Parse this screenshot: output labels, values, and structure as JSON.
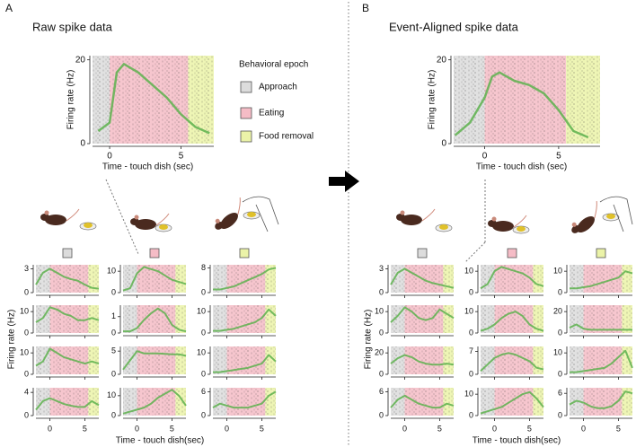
{
  "panels": [
    {
      "letter": "A",
      "title": "Raw spike data",
      "y_label": "Firing rate (Hz)",
      "x_label": "Time - touch dish(sec)"
    },
    {
      "letter": "B",
      "title": "Event-Aligned spike data",
      "y_label": "Firing rate (Hz)",
      "x_label": "Time - touch dish(sec)"
    }
  ],
  "legend": {
    "title": "Behavioral epoch"
  },
  "epochs": [
    {
      "name": "Approach",
      "color": "#dcdcdc",
      "start": -2.5,
      "end": 0
    },
    {
      "name": "Eating",
      "color": "#f5bcc6",
      "start": 0,
      "end": 5.5
    },
    {
      "name": "Food removal",
      "color": "#ebf3a8",
      "start": 5.5,
      "end": 8
    }
  ],
  "chart_data": [
    {
      "type": "line",
      "x_label": "Time - touch dish (sec)",
      "y_label": "Firing rate (Hz)",
      "x": [
        -0.8,
        0,
        0.5,
        1,
        2,
        3,
        4,
        5,
        6,
        7
      ],
      "values": [
        3,
        5,
        17,
        19,
        17,
        14,
        11,
        7,
        4,
        2.5
      ],
      "xlim": [
        -1.2,
        7.3
      ],
      "xticks": [
        0,
        5
      ],
      "ylim": [
        0,
        21
      ],
      "yticks": [
        0,
        20
      ],
      "color": "#5db14e"
    },
    {
      "type": "line",
      "x_label": "Time - touch dish (sec)",
      "y_label": "Firing rate (Hz)",
      "x": [
        -2,
        -1,
        0,
        0.5,
        1,
        2,
        3,
        4,
        5,
        6,
        7
      ],
      "values": [
        2,
        5,
        11,
        16,
        17,
        15,
        14,
        12,
        8,
        3,
        1.5
      ],
      "xlim": [
        -2.1,
        7.8
      ],
      "xticks": [
        0,
        5
      ],
      "ylim": [
        0,
        21
      ],
      "yticks": [
        0,
        20
      ],
      "color": "#5db14e"
    },
    {
      "type": "line",
      "x": [
        -2,
        -1,
        0,
        1,
        2,
        3,
        4,
        5,
        6,
        7
      ],
      "values": [
        1,
        2.5,
        3,
        2.5,
        2,
        1.7,
        1.5,
        1,
        0.6,
        0.5
      ],
      "xlim": [
        -2,
        7
      ],
      "xticks": [
        0,
        5
      ],
      "ylim": [
        0,
        3.5
      ],
      "yticks": [
        0,
        3
      ],
      "color": "#5db14e"
    },
    {
      "type": "line",
      "x": [
        -2,
        -1,
        0,
        1,
        2,
        3,
        4,
        5,
        6,
        7
      ],
      "values": [
        1,
        2,
        9,
        12,
        11,
        10,
        8,
        6,
        5,
        4
      ],
      "xlim": [
        -2,
        7
      ],
      "xticks": [
        0,
        5
      ],
      "ylim": [
        0,
        13
      ],
      "yticks": [
        0,
        10
      ],
      "color": "#5db14e"
    },
    {
      "type": "line",
      "x": [
        -2,
        -1,
        0,
        1,
        2,
        3,
        4,
        5,
        6,
        7
      ],
      "values": [
        1,
        1,
        1.5,
        2,
        3,
        4,
        5,
        6,
        7.5,
        8
      ],
      "xlim": [
        -2,
        7
      ],
      "xticks": [
        0,
        5
      ],
      "ylim": [
        0,
        9
      ],
      "yticks": [
        0,
        8
      ],
      "color": "#5db14e"
    },
    {
      "type": "line",
      "x": [
        -2,
        -1,
        0,
        1,
        2,
        3,
        4,
        5,
        6,
        7
      ],
      "values": [
        5,
        7,
        12,
        11,
        9,
        8,
        6,
        6,
        7,
        6
      ],
      "xlim": [
        -2,
        7
      ],
      "xticks": [
        0,
        5
      ],
      "ylim": [
        0,
        13
      ],
      "yticks": [
        0,
        10
      ],
      "color": "#5db14e"
    },
    {
      "type": "line",
      "x": [
        -2,
        -1,
        0,
        1,
        2,
        3,
        4,
        5,
        6,
        7
      ],
      "values": [
        0.1,
        0.1,
        0.3,
        0.8,
        1.2,
        1.5,
        1.2,
        0.5,
        0.2,
        0.1
      ],
      "xlim": [
        -2,
        7
      ],
      "xticks": [
        0,
        5
      ],
      "ylim": [
        0,
        1.7
      ],
      "yticks": [
        0,
        1
      ],
      "color": "#5db14e"
    },
    {
      "type": "line",
      "x": [
        -2,
        -1,
        0,
        1,
        2,
        3,
        4,
        5,
        6,
        7
      ],
      "values": [
        1,
        1,
        1.5,
        2,
        3,
        4,
        5,
        7,
        11,
        8
      ],
      "xlim": [
        -2,
        7
      ],
      "xticks": [
        0,
        5
      ],
      "ylim": [
        0,
        13
      ],
      "yticks": [
        0,
        10
      ],
      "color": "#5db14e"
    },
    {
      "type": "line",
      "x": [
        -2,
        -1,
        0,
        1,
        2,
        3,
        4,
        5,
        6,
        7
      ],
      "values": [
        4,
        6,
        12,
        10,
        8,
        7,
        6,
        5,
        6,
        5
      ],
      "xlim": [
        -2,
        7
      ],
      "xticks": [
        0,
        5
      ],
      "ylim": [
        0,
        13
      ],
      "yticks": [
        0,
        10
      ],
      "color": "#5db14e"
    },
    {
      "type": "line",
      "x": [
        -2,
        -1,
        0,
        1,
        2,
        3,
        4,
        5,
        6,
        7
      ],
      "values": [
        1,
        3,
        5,
        4.5,
        4.5,
        4.5,
        4.4,
        4.3,
        4.3,
        4
      ],
      "xlim": [
        -2,
        7
      ],
      "xticks": [
        0,
        5
      ],
      "ylim": [
        0,
        6
      ],
      "yticks": [
        0,
        5
      ],
      "color": "#5db14e"
    },
    {
      "type": "line",
      "x": [
        -2,
        -1,
        0,
        1,
        2,
        3,
        4,
        5,
        6,
        7
      ],
      "values": [
        1,
        1,
        1.5,
        2,
        2.5,
        3,
        4,
        5,
        9,
        6
      ],
      "xlim": [
        -2,
        7
      ],
      "xticks": [
        0,
        5
      ],
      "ylim": [
        0,
        13
      ],
      "yticks": [
        0,
        10
      ],
      "color": "#5db14e"
    },
    {
      "type": "line",
      "x": [
        -2,
        -1,
        0,
        1,
        2,
        3,
        4,
        5,
        6,
        7
      ],
      "values": [
        1,
        2.5,
        3,
        2.5,
        2,
        1.7,
        1.5,
        1.5,
        2.5,
        1.8
      ],
      "xlim": [
        -2,
        7
      ],
      "xticks": [
        0,
        5
      ],
      "ylim": [
        0,
        4.8
      ],
      "yticks": [
        0,
        4
      ],
      "color": "#5db14e"
    },
    {
      "type": "line",
      "x": [
        -2,
        -1,
        0,
        1,
        2,
        3,
        4,
        5,
        6,
        7
      ],
      "values": [
        1,
        2,
        3,
        4,
        6,
        9,
        11,
        13,
        10,
        5
      ],
      "xlim": [
        -2,
        7
      ],
      "xticks": [
        0,
        5
      ],
      "ylim": [
        0,
        14
      ],
      "yticks": [
        0,
        10
      ],
      "color": "#5db14e"
    },
    {
      "type": "line",
      "x": [
        -2,
        -1,
        0,
        1,
        2,
        3,
        4,
        5,
        6,
        7
      ],
      "values": [
        2,
        3,
        2.5,
        2,
        2,
        2,
        2.5,
        3,
        5,
        6
      ],
      "xlim": [
        -2,
        7
      ],
      "xticks": [
        0,
        5
      ],
      "ylim": [
        0,
        7
      ],
      "yticks": [
        0,
        6
      ],
      "color": "#5db14e"
    },
    {
      "type": "line",
      "x": [
        -2,
        -1,
        0,
        1,
        2,
        3,
        4,
        5,
        6,
        7
      ],
      "values": [
        1,
        2.5,
        3,
        2.5,
        2,
        1.5,
        1.2,
        1,
        0.8,
        0.6
      ],
      "xlim": [
        -2,
        7
      ],
      "xticks": [
        0,
        5
      ],
      "ylim": [
        0,
        3.5
      ],
      "yticks": [
        0,
        3
      ],
      "color": "#5db14e"
    },
    {
      "type": "line",
      "x": [
        -2,
        -1,
        0,
        1,
        2,
        3,
        4,
        5,
        6,
        7
      ],
      "values": [
        2,
        4,
        10,
        12,
        11,
        10,
        9,
        7,
        4,
        3
      ],
      "xlim": [
        -2,
        7
      ],
      "xticks": [
        0,
        5
      ],
      "ylim": [
        0,
        13
      ],
      "yticks": [
        0,
        10
      ],
      "color": "#5db14e"
    },
    {
      "type": "line",
      "x": [
        -2,
        -1,
        0,
        1,
        2,
        3,
        4,
        5,
        6,
        7
      ],
      "values": [
        2,
        2,
        2.5,
        3,
        4,
        5,
        6,
        7,
        10,
        9
      ],
      "xlim": [
        -2,
        7
      ],
      "xticks": [
        0,
        5
      ],
      "ylim": [
        0,
        13
      ],
      "yticks": [
        0,
        10
      ],
      "color": "#5db14e"
    },
    {
      "type": "line",
      "x": [
        -2,
        -1,
        0,
        1,
        2,
        3,
        4,
        5,
        6,
        7
      ],
      "values": [
        5,
        8,
        12,
        10,
        7,
        6,
        7,
        11,
        9,
        7
      ],
      "xlim": [
        -2,
        7
      ],
      "xticks": [
        0,
        5
      ],
      "ylim": [
        0,
        13
      ],
      "yticks": [
        0,
        10
      ],
      "color": "#5db14e"
    },
    {
      "type": "line",
      "x": [
        -2,
        -1,
        0,
        1,
        2,
        3,
        4,
        5,
        6,
        7
      ],
      "values": [
        1,
        2,
        4,
        7,
        9,
        10,
        8,
        4,
        2,
        1
      ],
      "xlim": [
        -2,
        7
      ],
      "xticks": [
        0,
        5
      ],
      "ylim": [
        0,
        13
      ],
      "yticks": [
        0,
        10
      ],
      "color": "#5db14e"
    },
    {
      "type": "line",
      "x": [
        -2,
        -1,
        0,
        1,
        2,
        3,
        4,
        5,
        6,
        7
      ],
      "values": [
        5,
        8,
        4,
        3,
        3,
        3,
        3,
        3,
        3,
        3
      ],
      "xlim": [
        -2,
        7
      ],
      "xticks": [
        0,
        5
      ],
      "ylim": [
        0,
        26
      ],
      "yticks": [
        0,
        20
      ],
      "color": "#5db14e"
    },
    {
      "type": "line",
      "x": [
        -2,
        -1,
        0,
        1,
        2,
        3,
        4,
        5,
        6,
        7
      ],
      "values": [
        10,
        15,
        18,
        16,
        12,
        10,
        9,
        9,
        10,
        9
      ],
      "xlim": [
        -2,
        7
      ],
      "xticks": [
        0,
        5
      ],
      "ylim": [
        0,
        26
      ],
      "yticks": [
        0,
        20
      ],
      "color": "#5db14e"
    },
    {
      "type": "line",
      "x": [
        -2,
        -1,
        0,
        1,
        2,
        3,
        4,
        5,
        6,
        7
      ],
      "values": [
        1,
        3,
        5,
        6,
        6.5,
        6,
        5,
        4,
        2,
        1.5
      ],
      "xlim": [
        -2,
        7
      ],
      "xticks": [
        0,
        5
      ],
      "ylim": [
        0,
        8.5
      ],
      "yticks": [
        0,
        7
      ],
      "color": "#5db14e"
    },
    {
      "type": "line",
      "x": [
        -2,
        -1,
        0,
        1,
        2,
        3,
        4,
        5,
        6,
        7
      ],
      "values": [
        1,
        1,
        1.5,
        2,
        2.5,
        3,
        5,
        8,
        11,
        3
      ],
      "xlim": [
        -2,
        7
      ],
      "xticks": [
        0,
        5
      ],
      "ylim": [
        0,
        13
      ],
      "yticks": [
        0,
        10
      ],
      "color": "#5db14e"
    },
    {
      "type": "line",
      "x": [
        -2,
        -1,
        0,
        1,
        2,
        3,
        4,
        5,
        6,
        7
      ],
      "values": [
        2,
        4,
        5,
        4,
        3,
        2.5,
        2,
        2,
        3,
        2.5
      ],
      "xlim": [
        -2,
        7
      ],
      "xticks": [
        0,
        5
      ],
      "ylim": [
        0,
        7
      ],
      "yticks": [
        0,
        6
      ],
      "color": "#5db14e"
    },
    {
      "type": "line",
      "x": [
        -2,
        -1,
        0,
        1,
        2,
        3,
        4,
        5,
        6,
        7
      ],
      "values": [
        1,
        2,
        3,
        4,
        6,
        8,
        10,
        11,
        8,
        4
      ],
      "xlim": [
        -2,
        7
      ],
      "xticks": [
        0,
        5
      ],
      "ylim": [
        0,
        13
      ],
      "yticks": [
        0,
        10
      ],
      "color": "#5db14e"
    },
    {
      "type": "line",
      "x": [
        -2,
        -1,
        0,
        1,
        2,
        3,
        4,
        5,
        6,
        7
      ],
      "values": [
        3,
        4,
        3.5,
        2.5,
        2,
        2,
        2.5,
        4,
        6.5,
        6
      ],
      "xlim": [
        -2,
        7
      ],
      "xticks": [
        0,
        5
      ],
      "ylim": [
        0,
        7.5
      ],
      "yticks": [
        0,
        6
      ],
      "color": "#5db14e"
    }
  ]
}
